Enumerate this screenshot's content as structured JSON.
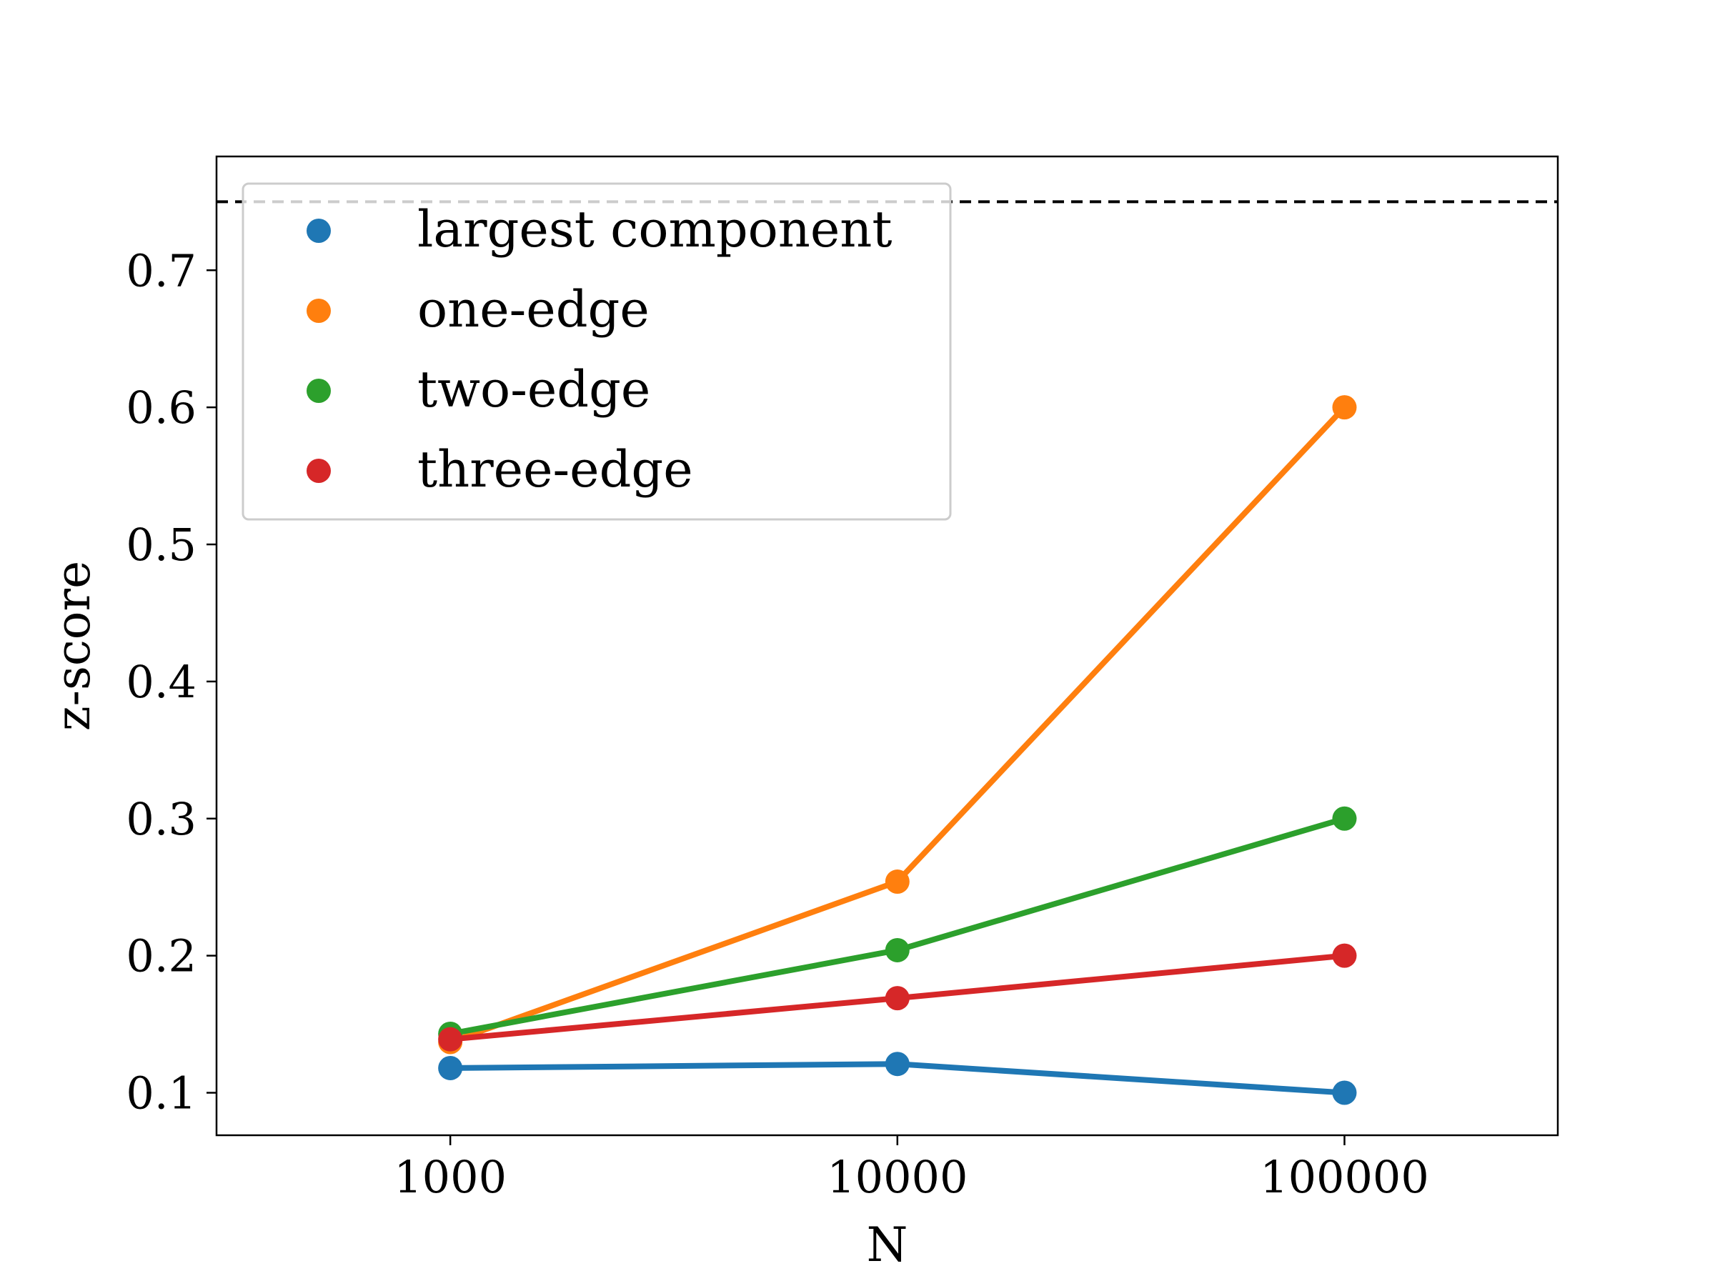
{
  "chart_data": {
    "type": "line",
    "x_scale": "log",
    "x": [
      1000,
      10000,
      100000
    ],
    "xticks": [
      "1000",
      "10000",
      "100000"
    ],
    "xlim": [
      300,
      300000
    ],
    "yticks": [
      "0.1",
      "0.2",
      "0.3",
      "0.4",
      "0.5",
      "0.6",
      "0.7"
    ],
    "ylim": [
      0.069,
      0.783
    ],
    "xlabel": "N",
    "ylabel": "z-score",
    "title": "",
    "grid": false,
    "legend_position": "upper-left",
    "reference_line": {
      "y": 0.75,
      "style": "dashed",
      "color": "#000000"
    },
    "series": [
      {
        "name": "largest component",
        "color": "#1f77b4",
        "values": [
          0.118,
          0.121,
          0.1
        ]
      },
      {
        "name": "one-edge",
        "color": "#ff7f0e",
        "values": [
          0.137,
          0.254,
          0.6
        ]
      },
      {
        "name": "two-edge",
        "color": "#2ca02c",
        "values": [
          0.143,
          0.204,
          0.3
        ]
      },
      {
        "name": "three-edge",
        "color": "#d62728",
        "values": [
          0.139,
          0.169,
          0.2
        ]
      }
    ]
  }
}
